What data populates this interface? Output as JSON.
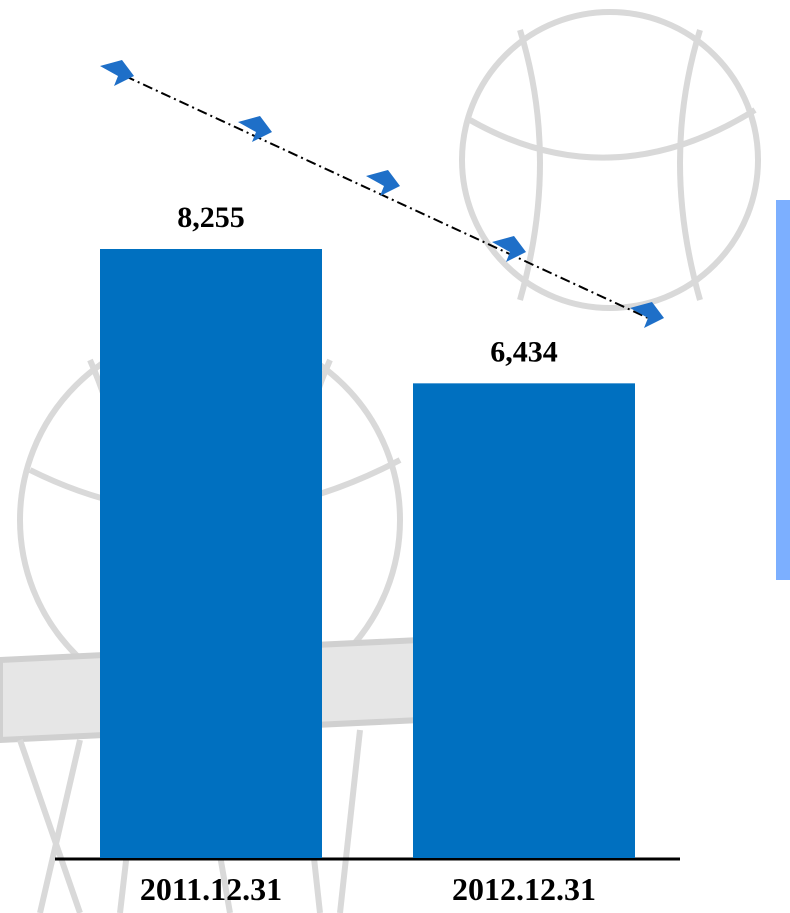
{
  "chart_data": {
    "type": "bar",
    "categories": [
      "2011.12.31",
      "2012.12.31"
    ],
    "values": [
      8255,
      6434
    ],
    "value_labels": [
      "8,255",
      "6,434"
    ],
    "color": "#0070c0"
  }
}
